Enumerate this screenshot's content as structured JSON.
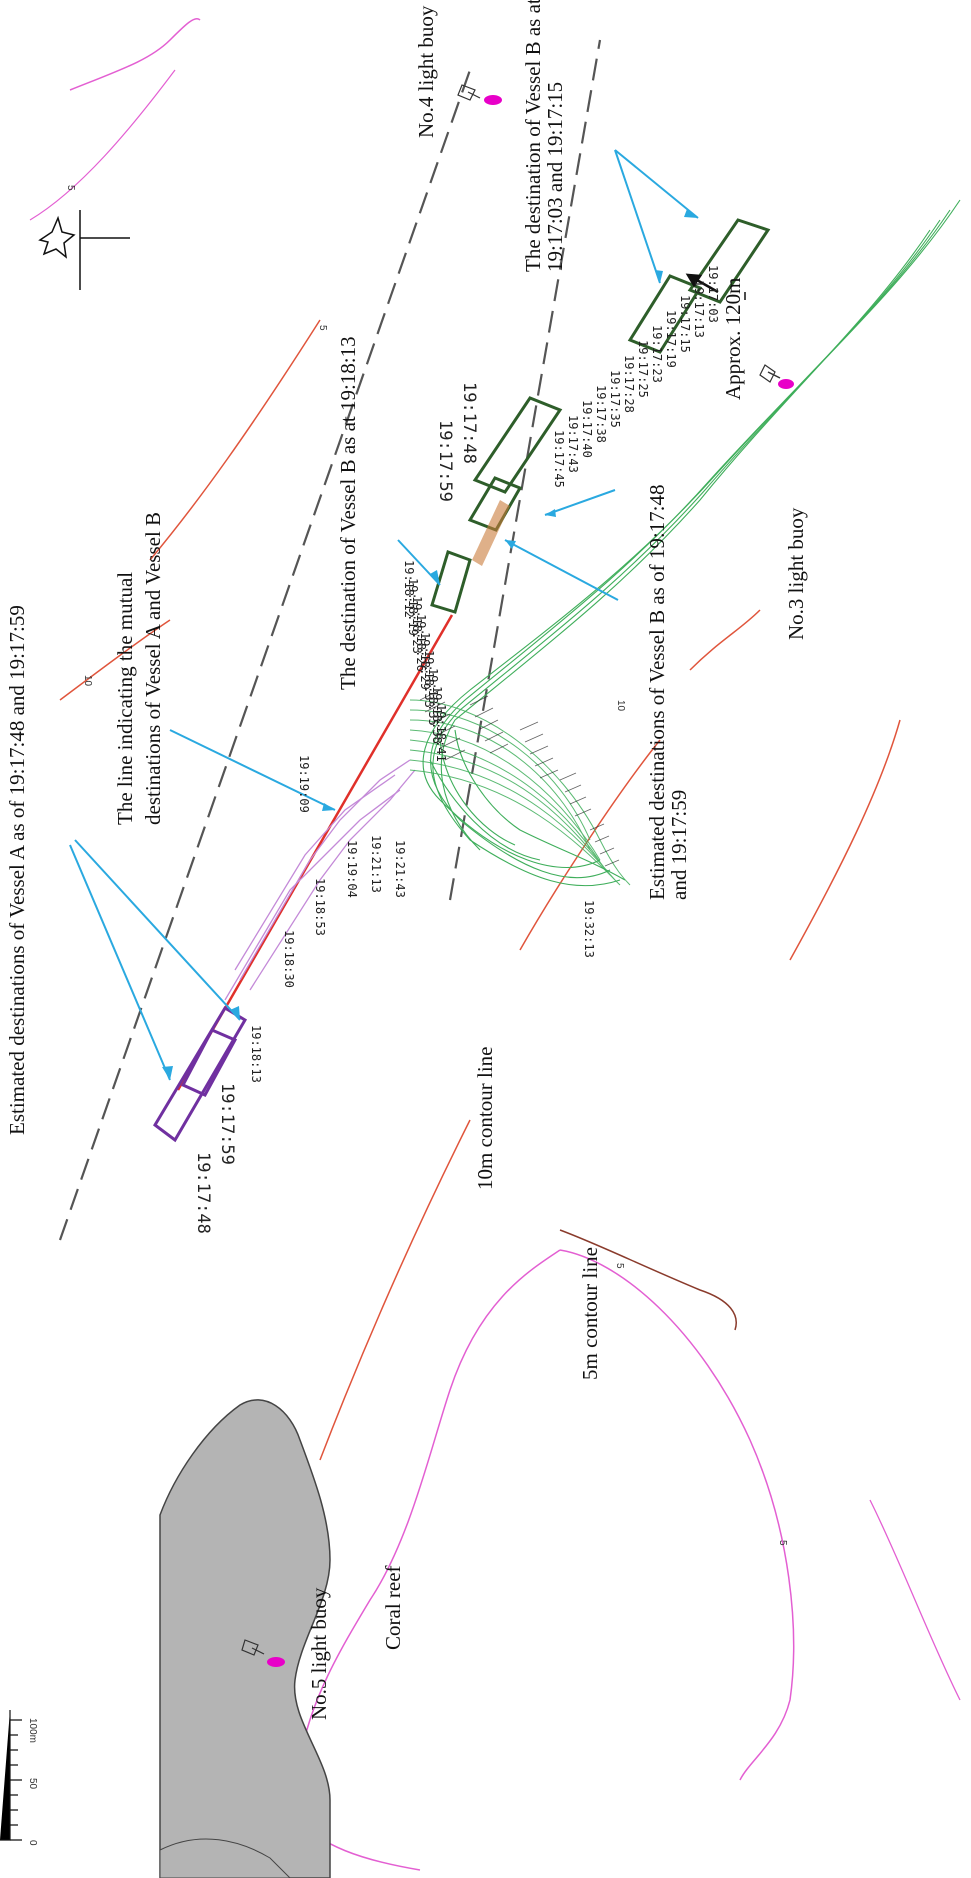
{
  "labels": {
    "est_a": "Estimated destinations of Vessel A as of 19:17:48 and 19:17:59",
    "mutual_1": "The line indicating the mutual",
    "mutual_2": "destinations of Vessel A and Vessel B",
    "dest_b_181813": "The destination of Vessel B as at 19:18:13",
    "est_b_1": "Estimated destinations of Vessel B as of 19:17:48",
    "est_b_2": "and 19:17:59",
    "dest_b_1703_1": "The destination of Vessel B as at",
    "dest_b_1703_2": "19:17:03 and 19:17:15",
    "approx": "Approx.  120m",
    "buoy4": "No.4 light buoy",
    "buoy3": "No.3 light buoy",
    "buoy5": "No.5 light buoy",
    "contour10": "10m contour line",
    "contour5": "5m contour line",
    "reef": "Coral reef"
  },
  "times_a": {
    "t1748": "19:17:48",
    "t1759": "19:17:59",
    "t1813": "19:18:13",
    "t1830": "19:18:30",
    "t1853": "19:18:53",
    "t1904": "19:19:04",
    "t1909": "19:19:09",
    "t1913": "19:21:13",
    "t2143": "19:21:43"
  },
  "times_b": {
    "t1748": "19:17:48",
    "t1759": "19:17:59",
    "t3213": "19:32:13"
  },
  "track_b_small": [
    "19:18:12",
    "19:18:19",
    "19:18:23",
    "19:18:26",
    "19:18:29",
    "19:18:33",
    "19:18:35",
    "19:18:38",
    "19:18:41"
  ],
  "track_b_upper": [
    "19:17:45",
    "19:17:43",
    "19:17:40",
    "19:17:38",
    "19:17:35",
    "19:17:28",
    "19:17:25",
    "19:17:23",
    "19:17:19",
    "19:17:15",
    "19:17:13",
    "19:17:03"
  ],
  "contour_marks": {
    "c10a": "10",
    "c10b": "10",
    "c5a": "5",
    "c5b": "5",
    "c5c": "5",
    "c5d": "5",
    "c5e": "5"
  },
  "scale": {
    "s0": "0",
    "s50": "50",
    "s100": "100m"
  },
  "colors": {
    "vessel_a": "#7030a0",
    "vessel_b": "#2e5e2a",
    "track_b": "#3fae5b",
    "track_a": "#c48ad8",
    "pointer": "#2aa9e0",
    "contour10": "#e0553c",
    "contour5": "#e35fd2",
    "reef": "#b4b4b4",
    "channel": "#555555",
    "mutual_line": "#e0302a"
  }
}
